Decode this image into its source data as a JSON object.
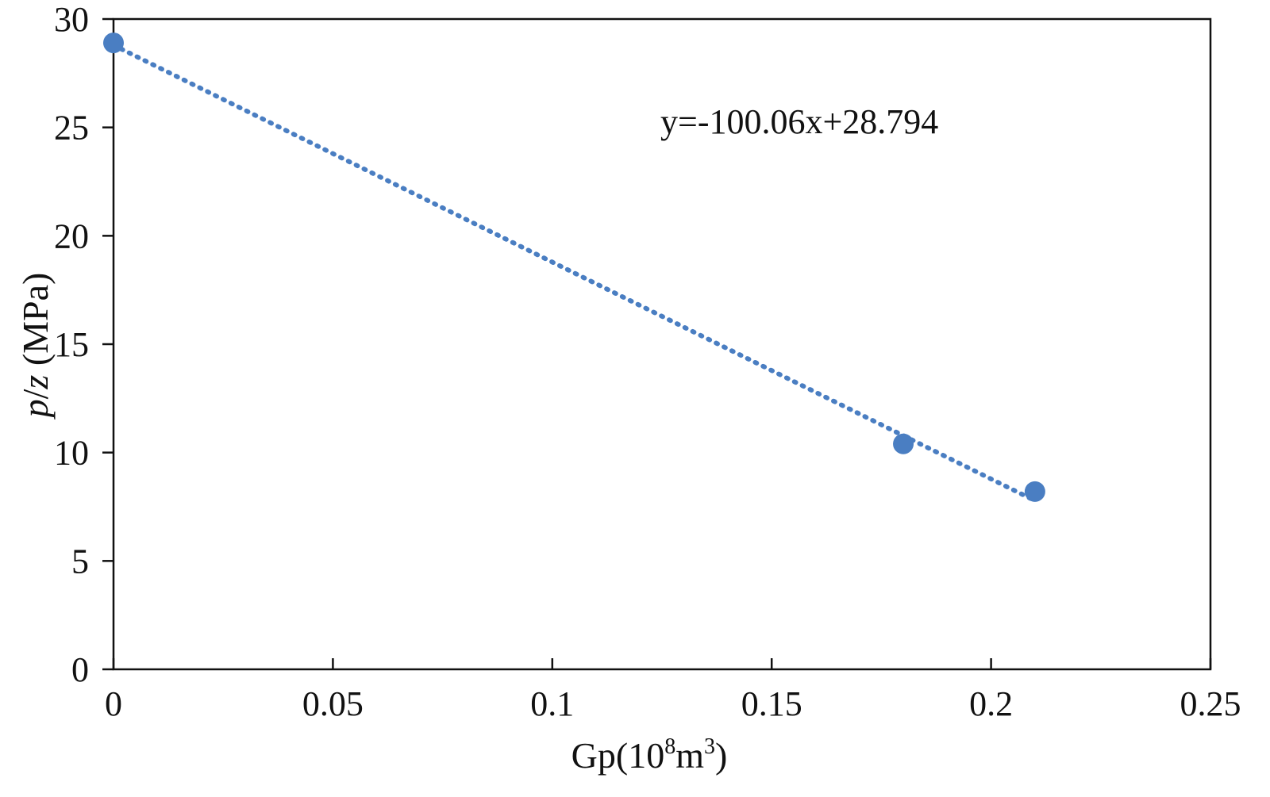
{
  "chart_data": {
    "type": "scatter",
    "title": "",
    "xlabel": {
      "base": "Gp(10",
      "sup1": "8",
      "mid": "m",
      "sup2": "3",
      "end": ")"
    },
    "ylabel": {
      "italic1": "p",
      "slash": "/",
      "italic2": "z",
      "rest": " (MPa)"
    },
    "xlim": [
      0,
      0.25
    ],
    "ylim": [
      0,
      30
    ],
    "x_ticks": [
      {
        "value": 0,
        "label": "0"
      },
      {
        "value": 0.05,
        "label": "0.05"
      },
      {
        "value": 0.1,
        "label": "0.1"
      },
      {
        "value": 0.15,
        "label": "0.15"
      },
      {
        "value": 0.2,
        "label": "0.2"
      },
      {
        "value": 0.25,
        "label": "0.25"
      }
    ],
    "y_ticks": [
      {
        "value": 0,
        "label": "0"
      },
      {
        "value": 5,
        "label": "5"
      },
      {
        "value": 10,
        "label": "10"
      },
      {
        "value": 15,
        "label": "15"
      },
      {
        "value": 20,
        "label": "20"
      },
      {
        "value": 25,
        "label": "25"
      },
      {
        "value": 30,
        "label": "30"
      }
    ],
    "points": [
      {
        "x": 0,
        "y": 28.9
      },
      {
        "x": 0.18,
        "y": 10.4
      },
      {
        "x": 0.21,
        "y": 8.2
      }
    ],
    "trendline": {
      "slope": -100.06,
      "intercept": 28.794,
      "x_range": [
        0,
        0.21
      ]
    },
    "equation": "y=-100.06x+28.794",
    "grid": false,
    "colors": {
      "marker": "#4a7ec2",
      "trendline": "#4a7ec2",
      "axis": "#111111"
    }
  }
}
